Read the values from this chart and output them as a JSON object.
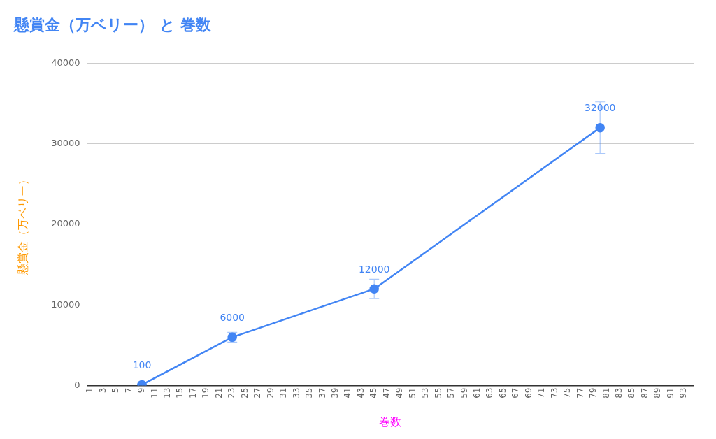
{
  "chart_data": {
    "type": "line",
    "title": "懸賞金（万ベリー） と 巻数",
    "xlabel": "巻数",
    "ylabel": "懸賞金（万ベリー）",
    "x": [
      9,
      23,
      45,
      80
    ],
    "series": [
      {
        "color": "#4285f4",
        "values": [
          100,
          6000,
          12000,
          32000
        ],
        "errors": [
          10,
          600,
          1200,
          3200
        ]
      }
    ],
    "xlim": [
      0.5,
      94.5
    ],
    "xticks": [
      1,
      3,
      5,
      7,
      9,
      11,
      13,
      15,
      17,
      19,
      21,
      23,
      25,
      27,
      29,
      31,
      33,
      35,
      37,
      39,
      41,
      43,
      45,
      47,
      49,
      51,
      53,
      55,
      57,
      59,
      61,
      63,
      65,
      67,
      69,
      71,
      73,
      75,
      77,
      79,
      81,
      83,
      85,
      87,
      89,
      91,
      93
    ],
    "ylim": [
      0,
      40000
    ],
    "yticks": [
      0,
      10000,
      20000,
      30000,
      40000
    ],
    "grid": "y",
    "marker": "circle",
    "line_style": "solid",
    "data_labels": true
  }
}
